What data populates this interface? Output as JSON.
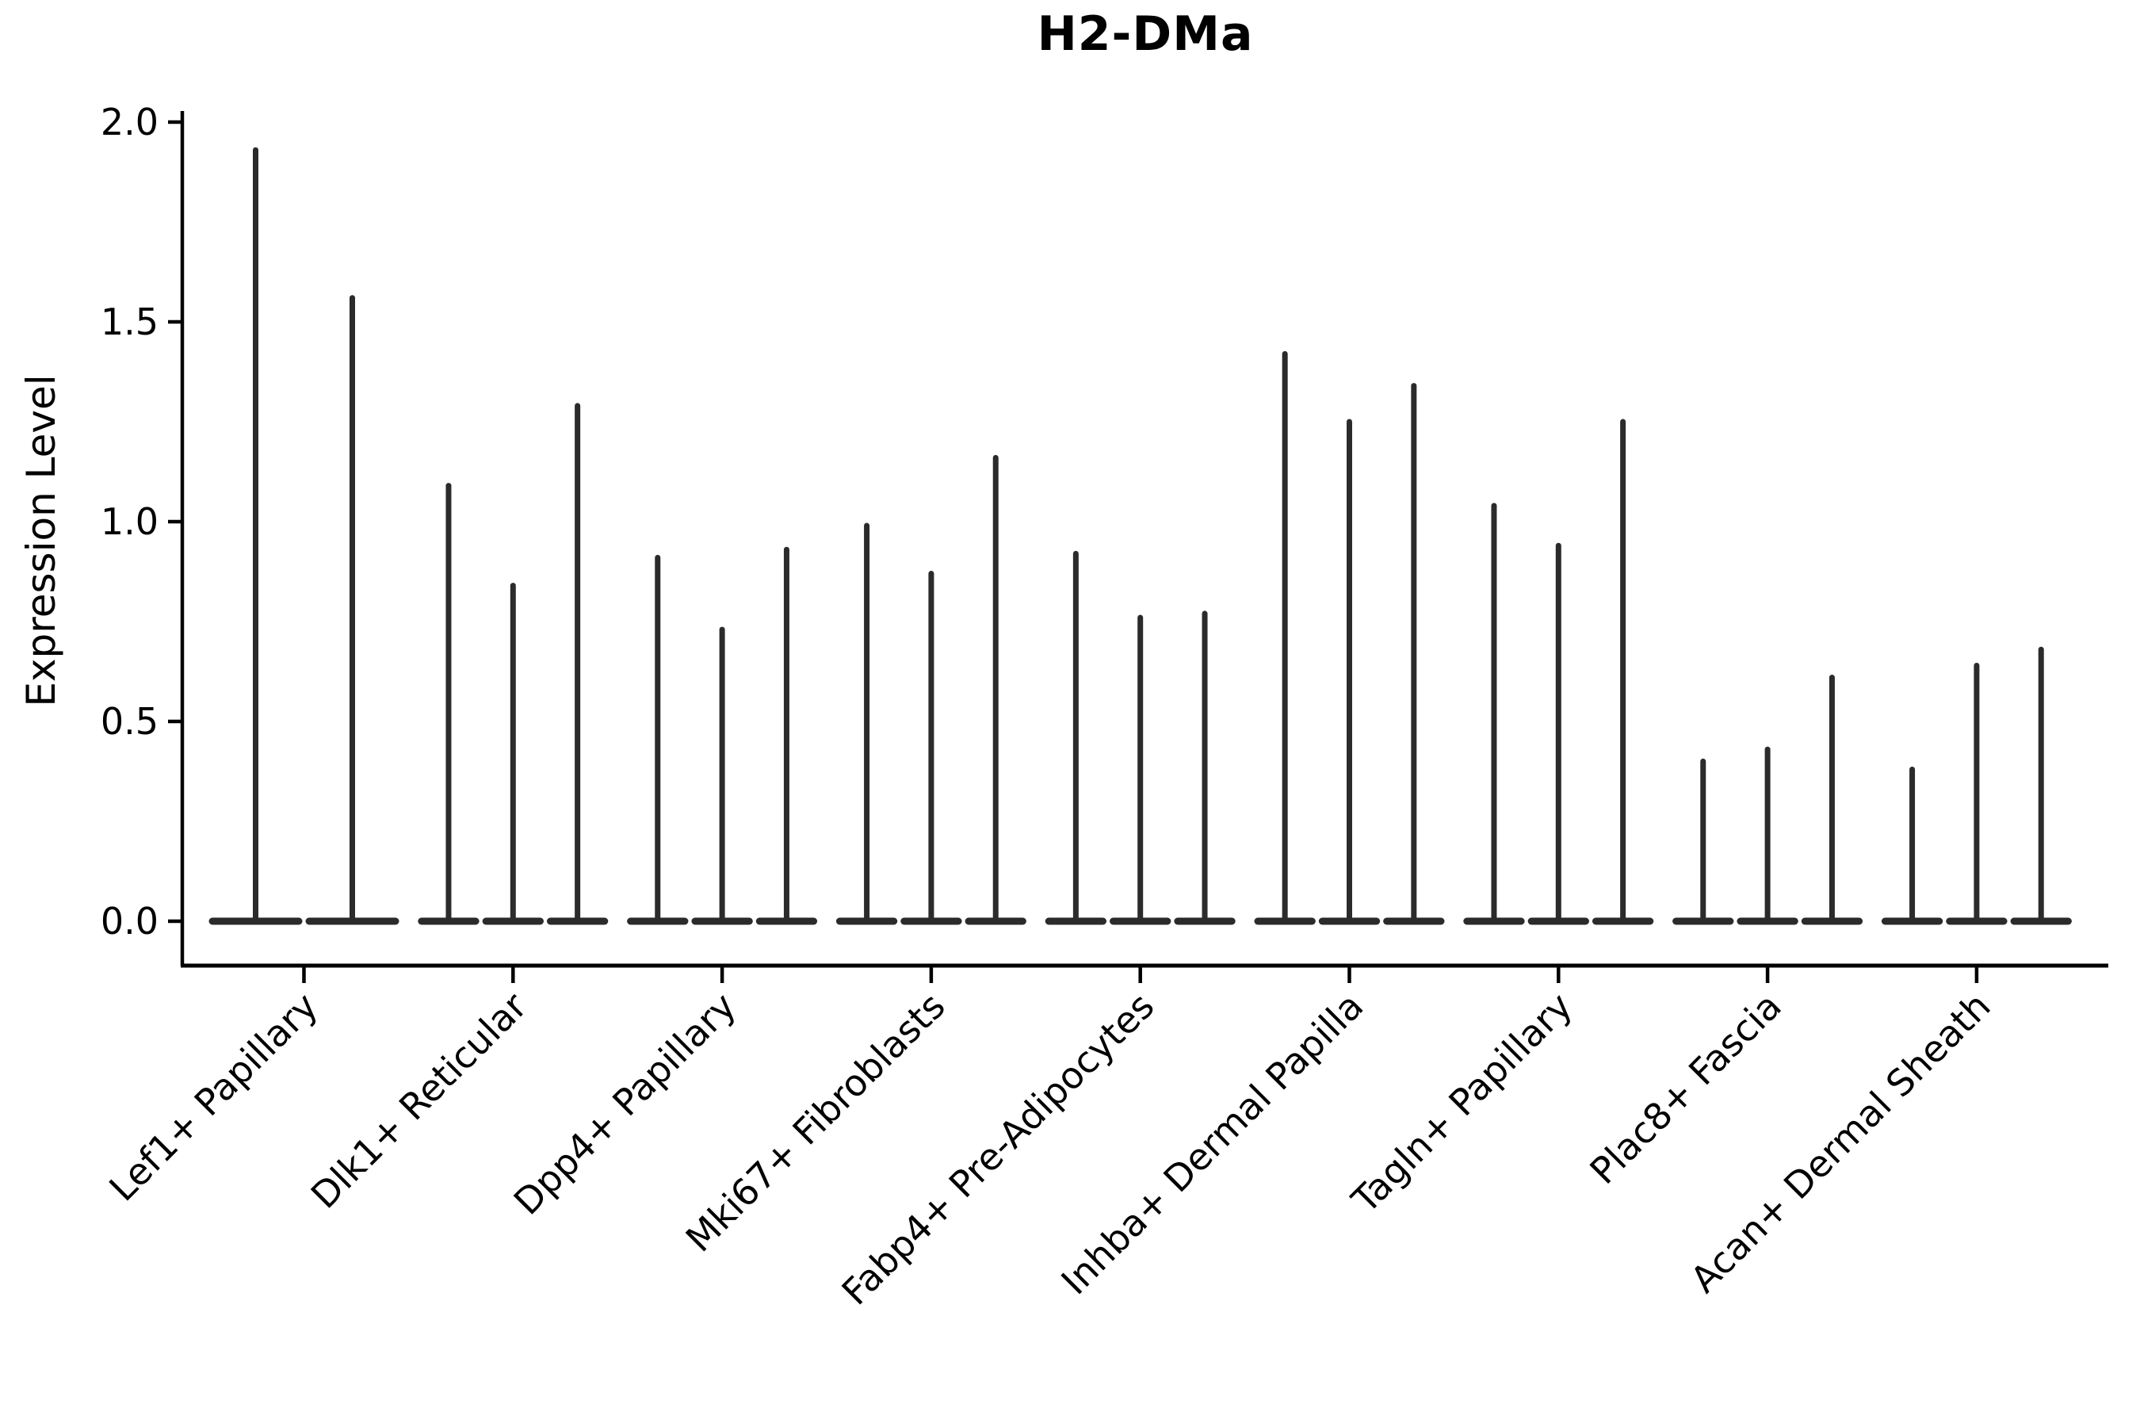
{
  "chart_data": {
    "type": "violin",
    "title": "H2-DMa",
    "ylabel": "Expression Level",
    "xlabel": "",
    "categories": [
      "Lef1+ Papillary",
      "Dlk1+ Reticular",
      "Dpp4+ Papillary",
      "Mki67+ Fibroblasts",
      "Fabp4+ Pre-Adipocytes",
      "Inhba+ Dermal Papilla",
      "Tagln+ Papillary",
      "Plac8+ Fascia",
      "Acan+ Dermal Sheath"
    ],
    "violins_per_category": [
      2,
      3,
      3,
      3,
      3,
      3,
      3,
      3,
      3
    ],
    "violin_max_values": [
      [
        1.93,
        1.56
      ],
      [
        1.09,
        0.84,
        1.29
      ],
      [
        0.91,
        0.73,
        0.93
      ],
      [
        0.99,
        0.87,
        1.16
      ],
      [
        0.92,
        0.76,
        0.77
      ],
      [
        1.42,
        1.25,
        1.34
      ],
      [
        1.04,
        0.94,
        1.25
      ],
      [
        0.4,
        0.43,
        0.61
      ],
      [
        0.38,
        0.64,
        0.68
      ]
    ],
    "violin_bulk_value": 0.0,
    "yticks": [
      0.0,
      0.5,
      1.0,
      1.5,
      2.0
    ],
    "ytick_labels": [
      "0.0",
      "0.5",
      "1.0",
      "1.5",
      "2.0"
    ],
    "ylim": [
      -0.11,
      2.03
    ],
    "grid": false,
    "legend": "none",
    "mark_color": "#2b2b2b",
    "axis_color": "#000000"
  }
}
